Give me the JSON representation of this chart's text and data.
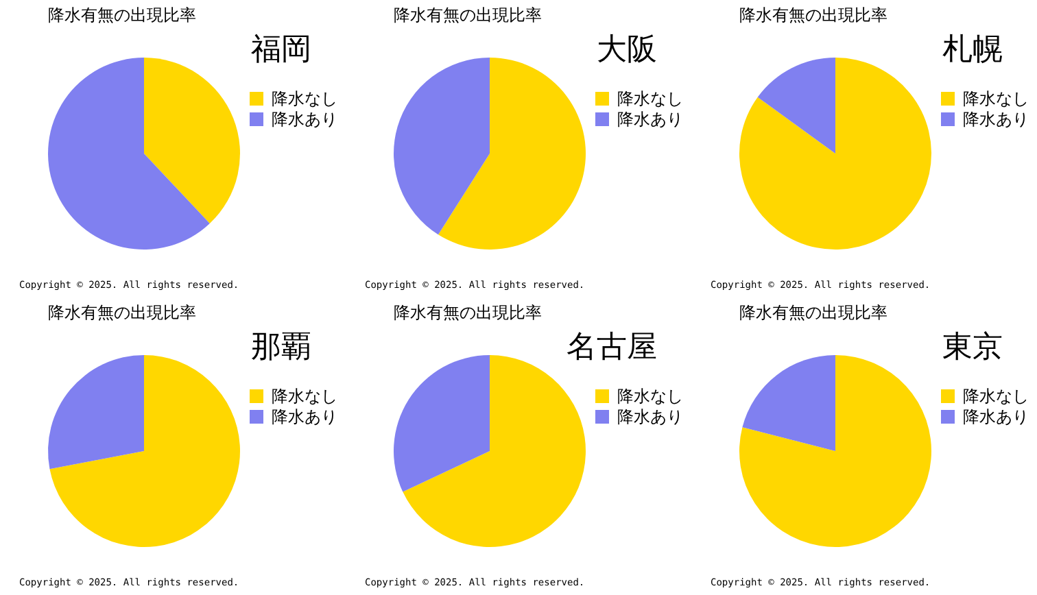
{
  "chart_data": [
    {
      "type": "pie",
      "title": "降水有無の出現比率",
      "subtitle": "福岡",
      "categories": [
        "降水なし",
        "降水あり"
      ],
      "values": [
        38,
        62
      ],
      "colors": [
        "#ffd700",
        "#8080f0"
      ],
      "legend": "right",
      "annotations": [
        "Copyright ©  2025. All rights reserved."
      ]
    },
    {
      "type": "pie",
      "title": "降水有無の出現比率",
      "subtitle": "大阪",
      "categories": [
        "降水なし",
        "降水あり"
      ],
      "values": [
        59,
        41
      ],
      "colors": [
        "#ffd700",
        "#8080f0"
      ],
      "legend": "right",
      "annotations": [
        "Copyright ©  2025. All rights reserved."
      ]
    },
    {
      "type": "pie",
      "title": "降水有無の出現比率",
      "subtitle": "札幌",
      "categories": [
        "降水なし",
        "降水あり"
      ],
      "values": [
        85,
        15
      ],
      "colors": [
        "#ffd700",
        "#8080f0"
      ],
      "legend": "right",
      "annotations": [
        "Copyright ©  2025. All rights reserved."
      ]
    },
    {
      "type": "pie",
      "title": "降水有無の出現比率",
      "subtitle": "那覇",
      "categories": [
        "降水なし",
        "降水あり"
      ],
      "values": [
        72,
        28
      ],
      "colors": [
        "#ffd700",
        "#8080f0"
      ],
      "legend": "right",
      "annotations": [
        "Copyright ©  2025. All rights reserved."
      ]
    },
    {
      "type": "pie",
      "title": "降水有無の出現比率",
      "subtitle": "名古屋",
      "categories": [
        "降水なし",
        "降水あり"
      ],
      "values": [
        68,
        32
      ],
      "colors": [
        "#ffd700",
        "#8080f0"
      ],
      "legend": "right",
      "annotations": [
        "Copyright ©  2025. All rights reserved."
      ]
    },
    {
      "type": "pie",
      "title": "降水有無の出現比率",
      "subtitle": "東京",
      "categories": [
        "降水なし",
        "降水あり"
      ],
      "values": [
        79,
        21
      ],
      "colors": [
        "#ffd700",
        "#8080f0"
      ],
      "legend": "right",
      "annotations": [
        "Copyright ©  2025. All rights reserved."
      ]
    }
  ]
}
